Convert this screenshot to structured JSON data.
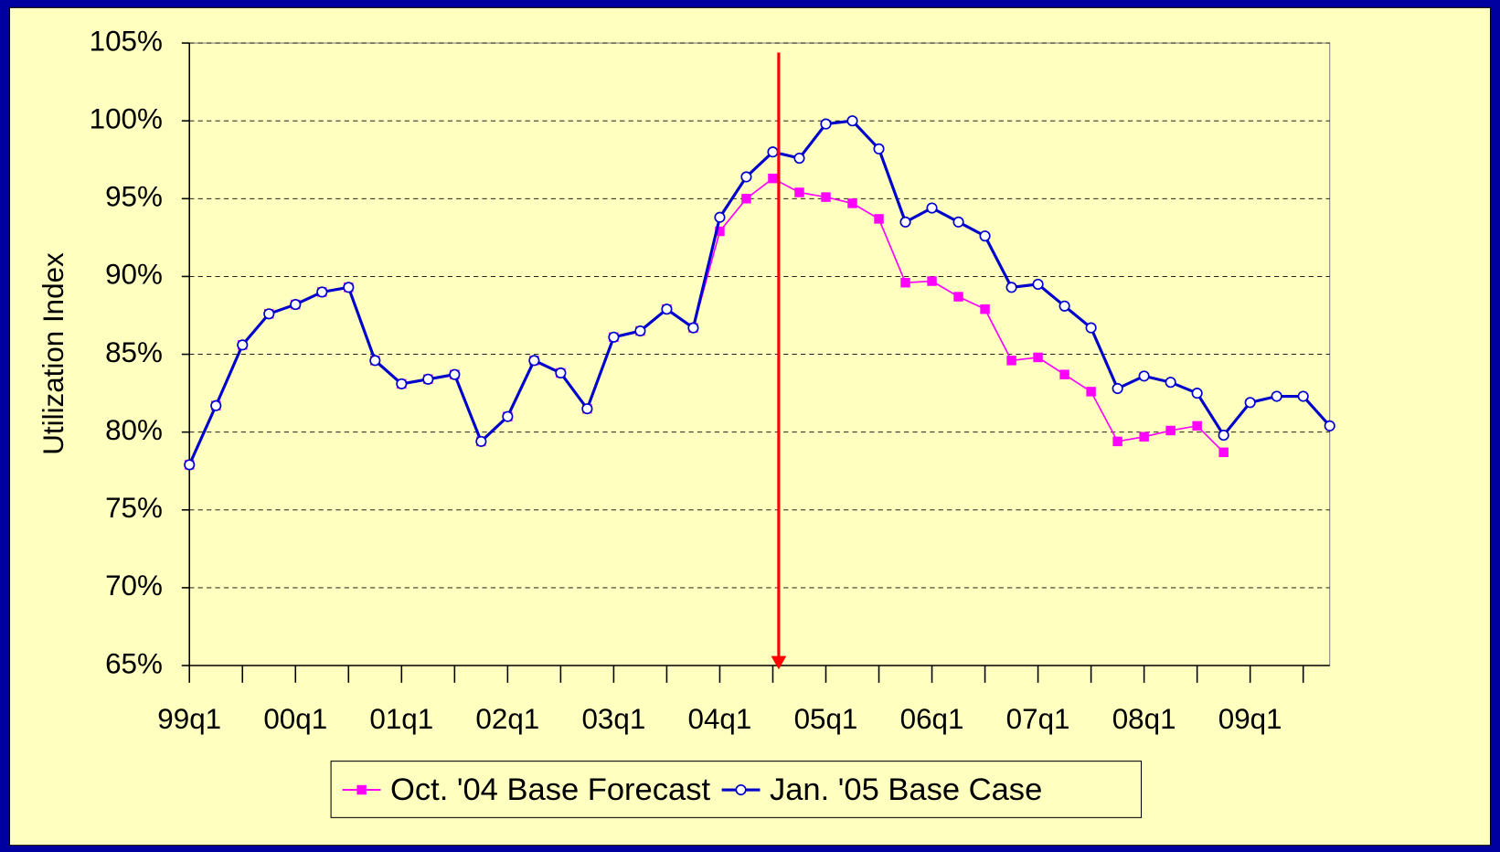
{
  "chart_data": {
    "type": "line",
    "y_label": "Utilization Index",
    "categories": [
      "99q1",
      null,
      null,
      null,
      "00q1",
      null,
      null,
      null,
      "01q1",
      null,
      null,
      null,
      "02q1",
      null,
      null,
      null,
      "03q1",
      null,
      null,
      null,
      "04q1",
      null,
      null,
      null,
      "05q1",
      null,
      null,
      null,
      "06q1",
      null,
      null,
      null,
      "07q1",
      null,
      null,
      null,
      "08q1",
      null,
      null,
      null,
      "09q1",
      null,
      null,
      null
    ],
    "series": [
      {
        "name": "Oct. '04 Base Forecast",
        "color": "#ff00ff",
        "marker": "square",
        "values": [
          77.9,
          81.7,
          85.6,
          87.6,
          88.2,
          89.0,
          89.3,
          84.6,
          83.1,
          83.4,
          83.7,
          79.4,
          81.0,
          84.6,
          83.8,
          81.5,
          86.1,
          86.5,
          87.9,
          86.7,
          92.9,
          95.0,
          96.3,
          95.4,
          95.1,
          94.7,
          93.7,
          89.6,
          89.7,
          88.7,
          87.9,
          84.6,
          84.8,
          83.7,
          82.6,
          79.4,
          79.7,
          80.1,
          80.4,
          78.7,
          null,
          null,
          null,
          null
        ]
      },
      {
        "name": "Jan. '05 Base Case",
        "color": "#0000cc",
        "marker": "circle",
        "values": [
          77.9,
          81.7,
          85.6,
          87.6,
          88.2,
          89.0,
          89.3,
          84.6,
          83.1,
          83.4,
          83.7,
          79.4,
          81.0,
          84.6,
          83.8,
          81.5,
          86.1,
          86.5,
          87.9,
          86.7,
          93.8,
          96.4,
          98.0,
          97.6,
          99.8,
          100.0,
          98.2,
          93.5,
          94.4,
          93.5,
          92.6,
          89.3,
          89.5,
          88.1,
          86.7,
          82.8,
          83.6,
          83.2,
          82.5,
          79.8,
          81.9,
          82.3,
          82.3,
          80.4
        ]
      }
    ],
    "ylim": [
      65,
      105
    ],
    "yticks": [
      {
        "value": 65,
        "label": "65%"
      },
      {
        "value": 70,
        "label": "70%"
      },
      {
        "value": 75,
        "label": "75%"
      },
      {
        "value": 80,
        "label": "80%"
      },
      {
        "value": 85,
        "label": "85%"
      },
      {
        "value": 90,
        "label": "90%"
      },
      {
        "value": 95,
        "label": "95%"
      },
      {
        "value": 100,
        "label": "100%"
      },
      {
        "value": 105,
        "label": "105%"
      }
    ],
    "grid": true,
    "legend": "bottom"
  }
}
